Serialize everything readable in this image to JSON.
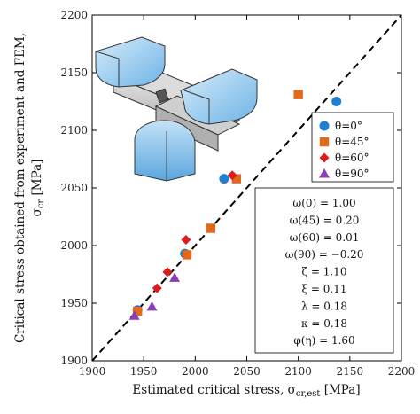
{
  "chart_data": {
    "type": "scatter",
    "xlabel": "Estimated critical stress, σcr,est [MPa]",
    "xlabel_parts": {
      "main": "Estimated critical stress, σ",
      "sub": "cr,est",
      "unit": " [MPa]"
    },
    "ylabel": "Critical stress obtained from experiment and FEM, σcr [MPa]",
    "ylabel_parts": {
      "line1": "Critical stress obtained from experiment and FEM,",
      "main": "σ",
      "sub": "cr",
      "unit": " [MPa]"
    },
    "xlim": [
      1900,
      2200
    ],
    "ylim": [
      1900,
      2200
    ],
    "xticks": [
      1900,
      1950,
      2000,
      2050,
      2100,
      2150,
      2200
    ],
    "yticks": [
      1900,
      1950,
      2000,
      2050,
      2100,
      2150,
      2200
    ],
    "reference_line": "y = x",
    "legend_placement": "right-middle",
    "series": [
      {
        "name": "θ=0°",
        "marker": "circle",
        "color": "#1f7fd0",
        "points": [
          [
            1944,
            1944
          ],
          [
            1990,
            1993
          ],
          [
            2028,
            2058
          ],
          [
            2137,
            2125
          ]
        ]
      },
      {
        "name": "θ=45°",
        "marker": "square",
        "color": "#e06a1a",
        "points": [
          [
            1944,
            1943
          ],
          [
            1992,
            1992
          ],
          [
            2015,
            2015
          ],
          [
            2040,
            2058
          ],
          [
            2100,
            2131
          ]
        ]
      },
      {
        "name": "θ=60°",
        "marker": "diamond",
        "color": "#dd1c1c",
        "points": [
          [
            1963,
            1963
          ],
          [
            1973,
            1977
          ],
          [
            1991,
            2005
          ],
          [
            2036,
            2061
          ]
        ]
      },
      {
        "name": "θ=90°",
        "marker": "triangle",
        "color": "#8a3fb5",
        "points": [
          [
            1941,
            1939
          ],
          [
            1958,
            1947
          ],
          [
            1980,
            1972
          ]
        ]
      }
    ],
    "parameters": [
      "ω(0) = 1.00",
      "ω(45) = 0.20",
      "ω(60) = 0.01",
      "ω(90) = −0.20",
      "ζ = 1.10",
      "ξ = 0.11",
      "λ = 0.18",
      "κ = 0.18",
      "φ(η) = 1.60"
    ]
  }
}
